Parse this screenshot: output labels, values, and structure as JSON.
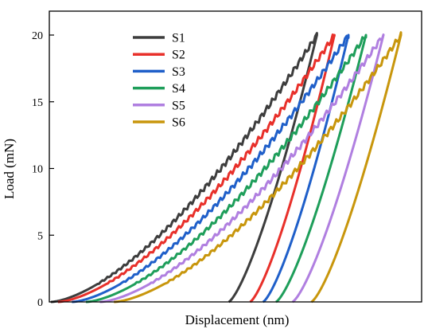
{
  "chart_data": {
    "type": "line",
    "xlabel": "Displacement (nm)",
    "ylabel": "Load (mN)",
    "ylim": [
      0,
      20
    ],
    "yticks": [
      0,
      5,
      10,
      15,
      20
    ],
    "grid": false,
    "legend_position": "top-left",
    "series": [
      {
        "name": "S1",
        "color": "#3d3d3d",
        "loading": {
          "x0": 0.0,
          "xmax": 0.76,
          "ymax": 20
        },
        "unloading": {
          "x_residual": 0.508,
          "xmax": 0.76,
          "ymax": 20
        }
      },
      {
        "name": "S2",
        "color": "#e8302a",
        "loading": {
          "x0": 0.02,
          "xmax": 0.81,
          "ymax": 20
        },
        "unloading": {
          "x_residual": 0.569,
          "xmax": 0.81,
          "ymax": 20
        }
      },
      {
        "name": "S3",
        "color": "#1f5fc9",
        "loading": {
          "x0": 0.06,
          "xmax": 0.85,
          "ymax": 20
        },
        "unloading": {
          "x_residual": 0.606,
          "xmax": 0.85,
          "ymax": 20
        }
      },
      {
        "name": "S4",
        "color": "#1e9e5a",
        "loading": {
          "x0": 0.1,
          "xmax": 0.9,
          "ymax": 20
        },
        "unloading": {
          "x_residual": 0.643,
          "xmax": 0.9,
          "ymax": 20
        }
      },
      {
        "name": "S5",
        "color": "#b07fe0",
        "loading": {
          "x0": 0.14,
          "xmax": 0.95,
          "ymax": 20
        },
        "unloading": {
          "x_residual": 0.69,
          "xmax": 0.95,
          "ymax": 20
        }
      },
      {
        "name": "S6",
        "color": "#c8960c",
        "loading": {
          "x0": 0.18,
          "xmax": 1.0,
          "ymax": 20
        },
        "unloading": {
          "x_residual": 0.744,
          "xmax": 1.0,
          "ymax": 20
        }
      }
    ]
  }
}
